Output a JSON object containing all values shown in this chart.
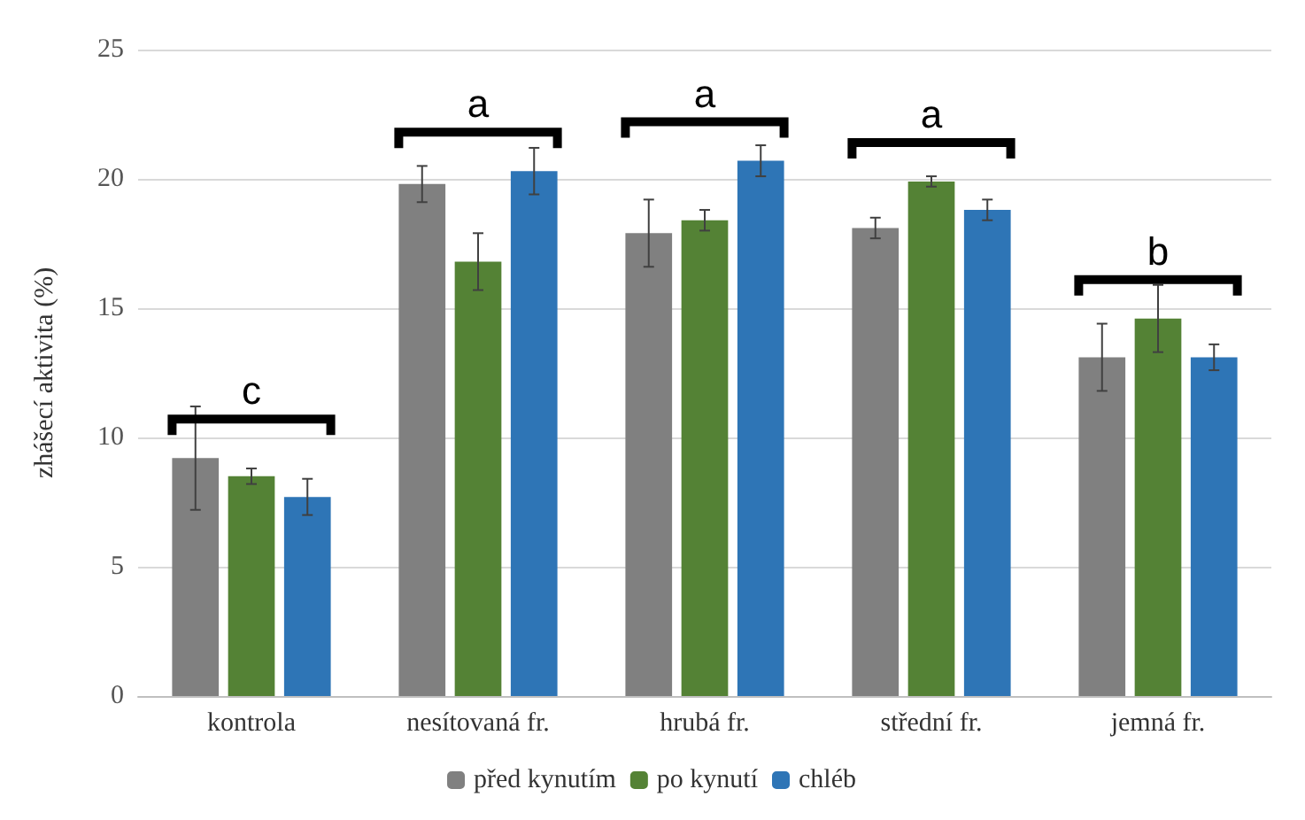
{
  "chart_data": {
    "type": "bar",
    "ylabel": "zhášecí aktivita (%)",
    "categories": [
      "kontrola",
      "nesítovaná fr.",
      "hrubá fr.",
      "střední fr.",
      "jemná fr."
    ],
    "series": [
      {
        "name": "před kynutím",
        "color": "#808080",
        "values": [
          9.2,
          19.8,
          17.9,
          18.1,
          13.1
        ],
        "errors": [
          2.0,
          0.7,
          1.3,
          0.4,
          1.3
        ]
      },
      {
        "name": "po kynutí",
        "color": "#548235",
        "values": [
          8.5,
          16.8,
          18.4,
          19.9,
          14.6
        ],
        "errors": [
          0.3,
          1.1,
          0.4,
          0.2,
          1.3
        ]
      },
      {
        "name": "chléb",
        "color": "#2e75b6",
        "values": [
          7.7,
          20.3,
          20.7,
          18.8,
          13.1
        ],
        "errors": [
          0.7,
          0.9,
          0.6,
          0.4,
          0.5
        ]
      }
    ],
    "ylim": [
      0,
      25
    ],
    "yticks": [
      0,
      5,
      10,
      15,
      20,
      25
    ],
    "grid": "y",
    "legend": "bottom",
    "annotations": [
      "c",
      "a",
      "a",
      "a",
      "b"
    ]
  }
}
